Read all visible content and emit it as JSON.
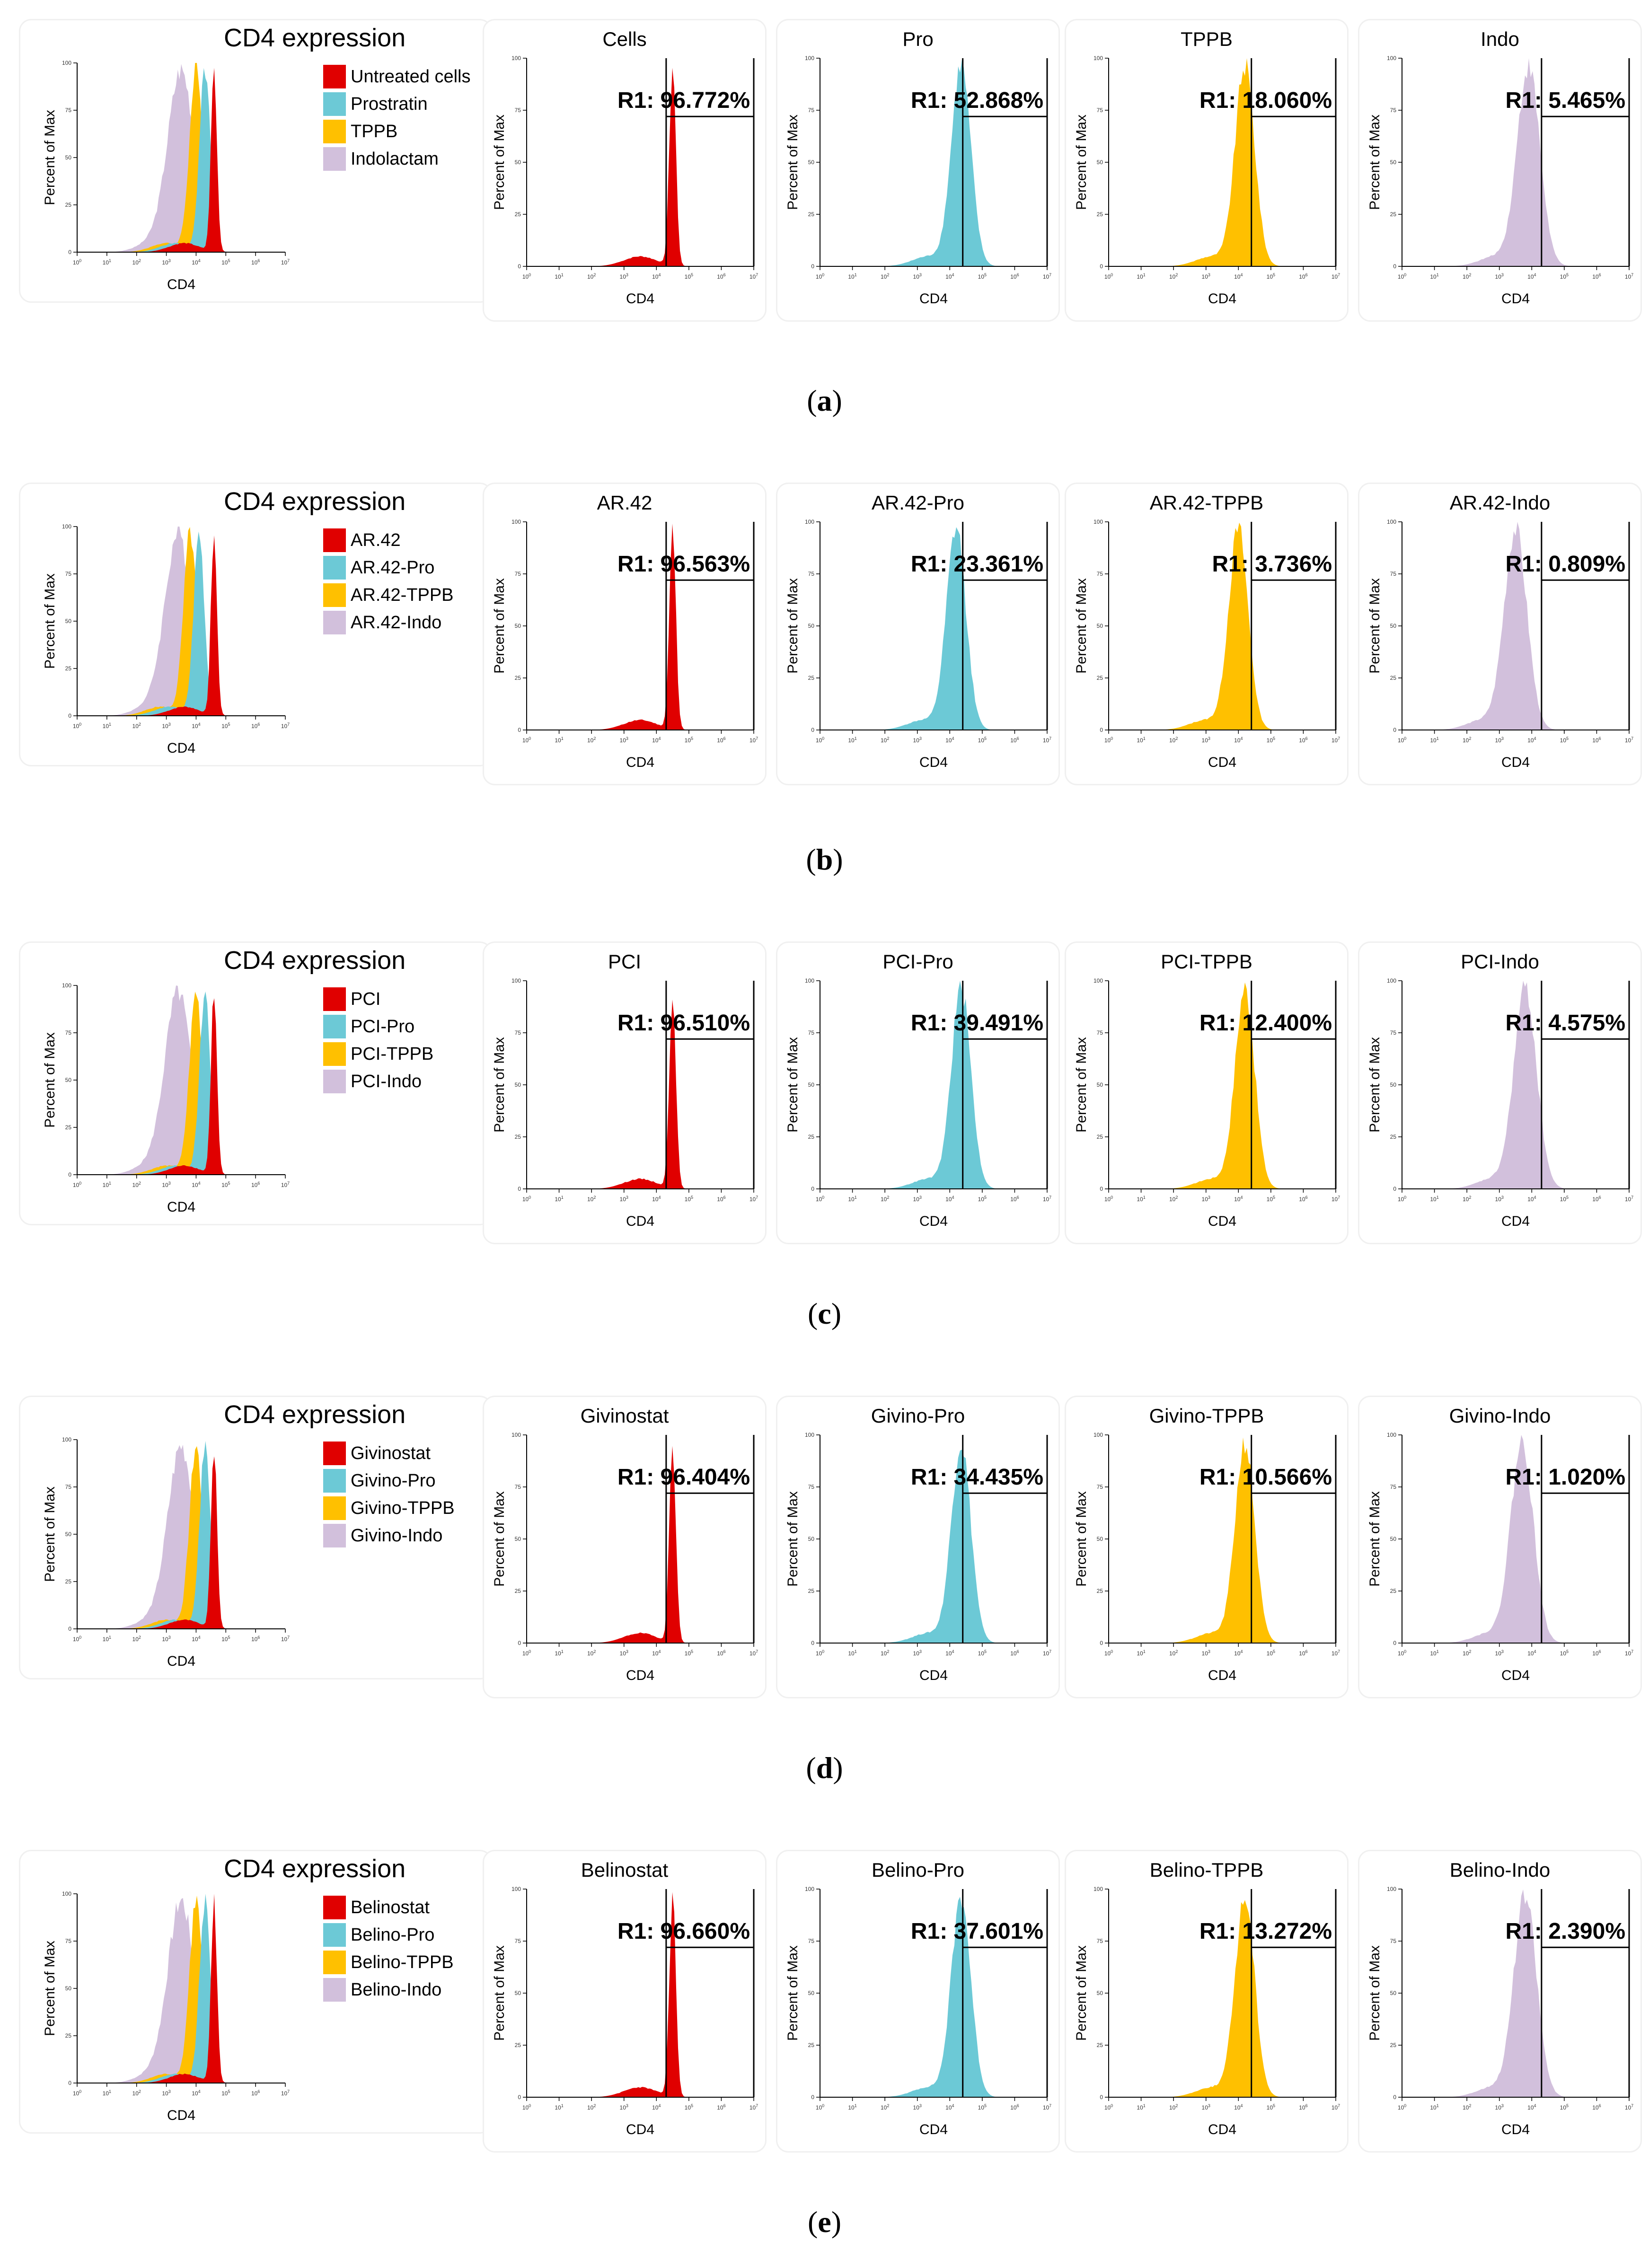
{
  "colors": {
    "red": "#e00000",
    "cyan": "#6cc9d6",
    "orange": "#ffc000",
    "lavender": "#d2c0dc",
    "gate": "#000000"
  },
  "axis": {
    "y_label": "Percent of Max",
    "x_label": "CD4",
    "y_ticks": [
      "0",
      "25",
      "50",
      "75",
      "100"
    ],
    "x_tick_base": "10",
    "x_tick_exps": [
      "0",
      "1",
      "2",
      "3",
      "4",
      "5",
      "6",
      "7"
    ]
  },
  "chart_data": [
    {
      "id": "a",
      "caption_letter": "a",
      "overlay": {
        "type": "area",
        "title": "CD4 expression",
        "legend": [
          {
            "label": "Untreated cells",
            "color": "red"
          },
          {
            "label": "Prostratin",
            "color": "cyan"
          },
          {
            "label": "TPPB",
            "color": "orange"
          },
          {
            "label": "Indolactam",
            "color": "lavender"
          }
        ],
        "peaks_log10": {
          "red": 4.6,
          "cyan": 4.3,
          "orange": 4.0,
          "lavender": 3.5
        }
      },
      "panels": [
        {
          "title": "Cells",
          "color": "red",
          "gate_label": "R1: 96.772%",
          "peak_log10": 4.5,
          "gate_log10": 4.3
        },
        {
          "title": "Pro",
          "color": "cyan",
          "gate_label": "R1: 52.868%",
          "peak_log10": 4.35,
          "gate_log10": 4.4
        },
        {
          "title": "TPPB",
          "color": "orange",
          "gate_label": "R1: 18.060%",
          "peak_log10": 4.2,
          "gate_log10": 4.4
        },
        {
          "title": "Indo",
          "color": "lavender",
          "gate_label": "R1: 5.465%",
          "peak_log10": 3.9,
          "gate_log10": 4.3
        }
      ]
    },
    {
      "id": "b",
      "caption_letter": "b",
      "overlay": {
        "type": "area",
        "title": "CD4 expression",
        "legend": [
          {
            "label": "AR.42",
            "color": "red"
          },
          {
            "label": "AR.42-Pro",
            "color": "cyan"
          },
          {
            "label": "AR.42-TPPB",
            "color": "orange"
          },
          {
            "label": "AR.42-Indo",
            "color": "lavender"
          }
        ],
        "peaks_log10": {
          "red": 4.6,
          "cyan": 4.1,
          "orange": 3.8,
          "lavender": 3.4
        }
      },
      "panels": [
        {
          "title": "AR.42",
          "color": "red",
          "gate_label": "R1: 96.563%",
          "peak_log10": 4.5,
          "gate_log10": 4.3
        },
        {
          "title": "AR.42-Pro",
          "color": "cyan",
          "gate_label": "R1: 23.361%",
          "peak_log10": 4.2,
          "gate_log10": 4.4
        },
        {
          "title": "AR.42-TPPB",
          "color": "orange",
          "gate_label": "R1: 3.736%",
          "peak_log10": 4.0,
          "gate_log10": 4.4
        },
        {
          "title": "AR.42-Indo",
          "color": "lavender",
          "gate_label": "R1: 0.809%",
          "peak_log10": 3.5,
          "gate_log10": 4.3
        }
      ]
    },
    {
      "id": "c",
      "caption_letter": "c",
      "overlay": {
        "type": "area",
        "title": "CD4 expression",
        "legend": [
          {
            "label": "PCI",
            "color": "red"
          },
          {
            "label": "PCI-Pro",
            "color": "cyan"
          },
          {
            "label": "PCI-TPPB",
            "color": "orange"
          },
          {
            "label": "PCI-Indo",
            "color": "lavender"
          }
        ],
        "peaks_log10": {
          "red": 4.6,
          "cyan": 4.3,
          "orange": 4.0,
          "lavender": 3.4
        }
      },
      "panels": [
        {
          "title": "PCI",
          "color": "red",
          "gate_label": "R1: 96.510%",
          "peak_log10": 4.5,
          "gate_log10": 4.3
        },
        {
          "title": "PCI-Pro",
          "color": "cyan",
          "gate_label": "R1: 39.491%",
          "peak_log10": 4.35,
          "gate_log10": 4.4
        },
        {
          "title": "PCI-TPPB",
          "color": "orange",
          "gate_label": "R1: 12.400%",
          "peak_log10": 4.2,
          "gate_log10": 4.4
        },
        {
          "title": "PCI-Indo",
          "color": "lavender",
          "gate_label": "R1: 4.575%",
          "peak_log10": 3.8,
          "gate_log10": 4.3
        }
      ]
    },
    {
      "id": "d",
      "caption_letter": "d",
      "overlay": {
        "type": "area",
        "title": "CD4 expression",
        "legend": [
          {
            "label": "Givinostat",
            "color": "red"
          },
          {
            "label": "Givino-Pro",
            "color": "cyan"
          },
          {
            "label": "Givino-TPPB",
            "color": "orange"
          },
          {
            "label": "Givino-Indo",
            "color": "lavender"
          }
        ],
        "peaks_log10": {
          "red": 4.6,
          "cyan": 4.3,
          "orange": 4.0,
          "lavender": 3.5
        }
      },
      "panels": [
        {
          "title": "Givinostat",
          "color": "red",
          "gate_label": "R1: 96.404%",
          "peak_log10": 4.5,
          "gate_log10": 4.3
        },
        {
          "title": "Givino-Pro",
          "color": "cyan",
          "gate_label": "R1: 34.435%",
          "peak_log10": 4.35,
          "gate_log10": 4.4
        },
        {
          "title": "Givino-TPPB",
          "color": "orange",
          "gate_label": "R1: 10.566%",
          "peak_log10": 4.2,
          "gate_log10": 4.4
        },
        {
          "title": "Givino-Indo",
          "color": "lavender",
          "gate_label": "R1: 1.020%",
          "peak_log10": 3.7,
          "gate_log10": 4.3
        }
      ]
    },
    {
      "id": "e",
      "caption_letter": "e",
      "overlay": {
        "type": "area",
        "title": "CD4 expression",
        "legend": [
          {
            "label": "Belinostat",
            "color": "red"
          },
          {
            "label": "Belino-Pro",
            "color": "cyan"
          },
          {
            "label": "Belino-TPPB",
            "color": "orange"
          },
          {
            "label": "Belino-Indo",
            "color": "lavender"
          }
        ],
        "peaks_log10": {
          "red": 4.6,
          "cyan": 4.3,
          "orange": 4.0,
          "lavender": 3.5
        }
      },
      "panels": [
        {
          "title": "Belinostat",
          "color": "red",
          "gate_label": "R1: 96.660%",
          "peak_log10": 4.5,
          "gate_log10": 4.3
        },
        {
          "title": "Belino-Pro",
          "color": "cyan",
          "gate_label": "R1: 37.601%",
          "peak_log10": 4.35,
          "gate_log10": 4.4
        },
        {
          "title": "Belino-TPPB",
          "color": "orange",
          "gate_label": "R1: 13.272%",
          "peak_log10": 4.2,
          "gate_log10": 4.4
        },
        {
          "title": "Belino-Indo",
          "color": "lavender",
          "gate_label": "R1: 2.390%",
          "peak_log10": 3.8,
          "gate_log10": 4.3
        }
      ]
    }
  ]
}
